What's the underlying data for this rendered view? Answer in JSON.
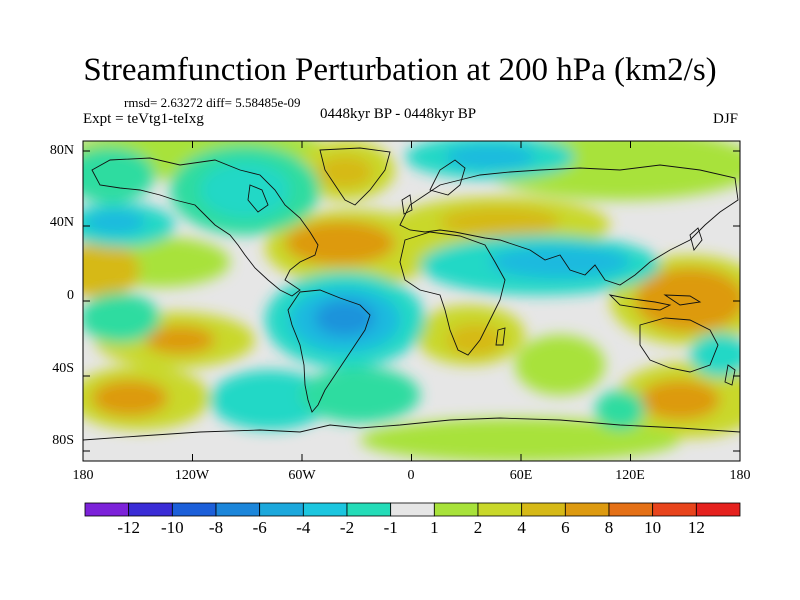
{
  "title": "Streamfunction Perturbation at 200 hPa (km2/s)",
  "stats": "rmsd= 2.63272 diff= 5.58485e-09",
  "expt": "Expt = teVtg1-teIxg",
  "period": "0448kyr BP - 0448kyr BP",
  "season": "DJF",
  "map": {
    "lat_labels": [
      "80N",
      "40N",
      "0",
      "40S",
      "80S"
    ],
    "lon_labels": [
      "180",
      "120W",
      "60W",
      "0",
      "60E",
      "120E",
      "180"
    ],
    "palette": {
      "-12": "#7c22d9",
      "-10": "#2a2fd6",
      "-8": "#1c66d9",
      "-6": "#1c93db",
      "-4": "#1cb9df",
      "-2": "#21d8c6",
      "-1": "#2fdca0",
      "0": "#e6e6e6",
      "1": "#a8e23a",
      "2": "#c9d82a",
      "4": "#d6b917",
      "6": "#dd9a10",
      "8": "#e47016",
      "10": "#e8441c",
      "12": "#e5211e"
    }
  },
  "colorbar": {
    "colors": [
      "#7c22d9",
      "#3a2cd6",
      "#1c5fd9",
      "#1c86da",
      "#1ca8dc",
      "#1cc6df",
      "#24dcb8",
      "#e6e6e6",
      "#a8e23a",
      "#c9d82a",
      "#d6b917",
      "#dd9a10",
      "#e47016",
      "#e8441c",
      "#e5211e"
    ],
    "labels": [
      "-12",
      "-10",
      "-8",
      "-6",
      "-4",
      "-2",
      "-1",
      "1",
      "2",
      "4",
      "6",
      "8",
      "10",
      "12"
    ]
  }
}
